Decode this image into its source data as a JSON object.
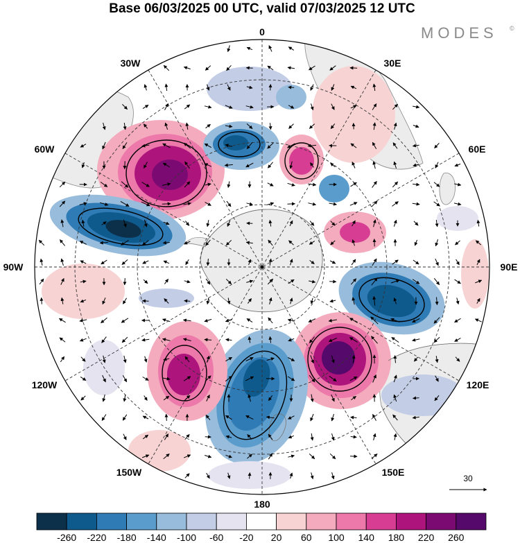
{
  "title": "Base 06/03/2025 00 UTC, valid 07/03/2025 12 UTC",
  "brand": "MODES",
  "brand_mark": "©",
  "longitude_labels": [
    "0",
    "30E",
    "60E",
    "90E",
    "120E",
    "150E",
    "180",
    "150W",
    "120W",
    "90W",
    "60W",
    "30W"
  ],
  "vector_reference": "30",
  "colorbar": {
    "ticks": [
      "-260",
      "-220",
      "-180",
      "-140",
      "-100",
      "-60",
      "-20",
      "20",
      "60",
      "100",
      "140",
      "180",
      "220",
      "260"
    ],
    "colors": [
      "#0c2f4a",
      "#0f5a8c",
      "#2f7bb5",
      "#5a9ccc",
      "#97bcdc",
      "#c3cde6",
      "#e6e3f1",
      "#ffffff",
      "#f8d3d4",
      "#f4abbd",
      "#ec79aa",
      "#d63d93",
      "#ad147c",
      "#7c0a73",
      "#54096b"
    ]
  },
  "map": {
    "projection": "south-polar-stereographic",
    "land_color": "#ececec",
    "ocean_color": "#ffffff",
    "graticule": "dashed"
  }
}
